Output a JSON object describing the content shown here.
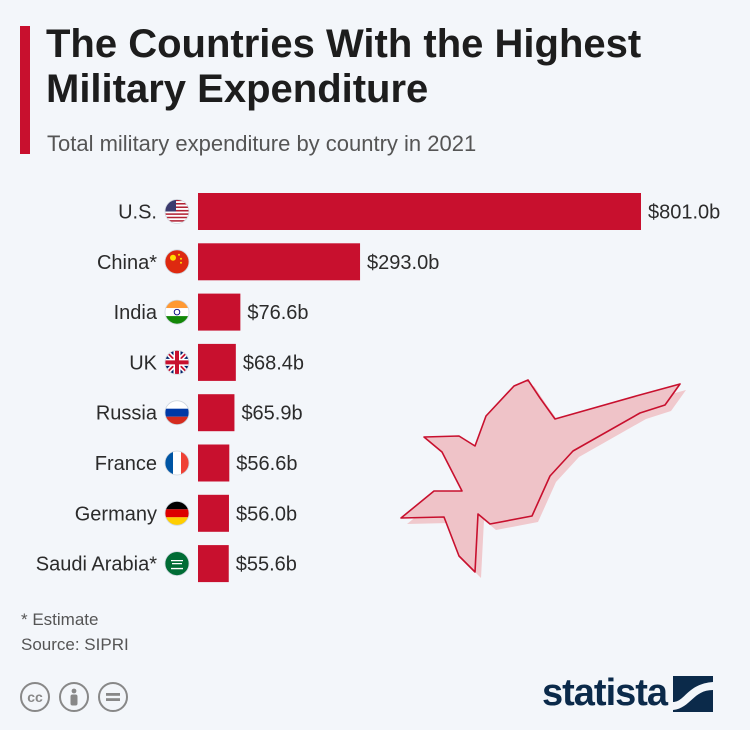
{
  "title": "The Countries With the Highest Military Expenditure",
  "subtitle": "Total military expenditure by country in 2021",
  "footnote": {
    "estimate": "* Estimate",
    "source": "Source: SIPRI"
  },
  "brand": {
    "name": "statista"
  },
  "colors": {
    "accent": "#c8102e",
    "bar": "#c8102e",
    "jet_fill": "#efc7cc",
    "jet_stroke": "#c8102e"
  },
  "icons": [
    "cc-icon",
    "attribution-icon",
    "no-derivatives-icon",
    "statista-logo-icon",
    "fighter-jet-icon"
  ],
  "chart_data": {
    "type": "bar",
    "orientation": "horizontal",
    "title": "The Countries With the Highest Military Expenditure",
    "subtitle": "Total military expenditure by country in 2021",
    "unit": "billion USD",
    "categories": [
      "U.S.",
      "China*",
      "India",
      "UK",
      "Russia",
      "France",
      "Germany",
      "Saudi Arabia*"
    ],
    "values": [
      801.0,
      293.0,
      76.6,
      68.4,
      65.9,
      56.6,
      56.0,
      55.6
    ],
    "value_labels": [
      "$801.0b",
      "$293.0b",
      "$76.6b",
      "$68.4b",
      "$65.9b",
      "$56.6b",
      "$56.0b",
      "$55.6b"
    ],
    "flags": [
      "us",
      "cn",
      "in",
      "uk",
      "ru",
      "fr",
      "de",
      "sa"
    ],
    "xlim": [
      0,
      801.0
    ],
    "grid": false,
    "legend": "none"
  }
}
